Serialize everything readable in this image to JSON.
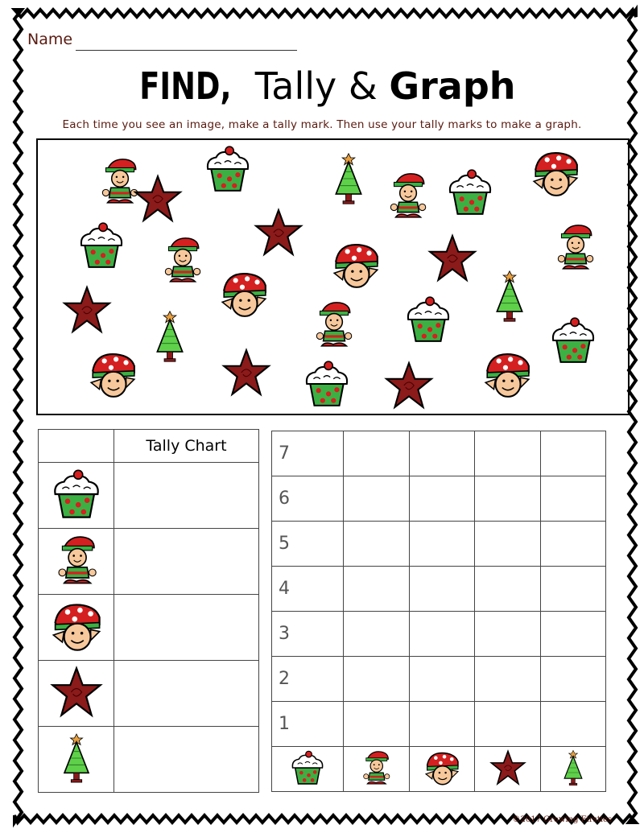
{
  "header": {
    "name_label": "Name",
    "title_part1": "FIND,",
    "title_part2": "Tally &",
    "title_part3": "Graph",
    "instructions": "Each time you see an image, make a tally mark. Then use your tally marks to make a graph."
  },
  "picture_items": [
    "cupcake",
    "elf",
    "elf-head",
    "star",
    "tree"
  ],
  "tally_chart": {
    "title": "Tally Chart",
    "rows": [
      {
        "icon": "cupcake",
        "tally": ""
      },
      {
        "icon": "elf",
        "tally": ""
      },
      {
        "icon": "elf-head",
        "tally": ""
      },
      {
        "icon": "star",
        "tally": ""
      },
      {
        "icon": "tree",
        "tally": ""
      }
    ]
  },
  "graph": {
    "y_labels": [
      "7",
      "6",
      "5",
      "4",
      "3",
      "2",
      "1"
    ],
    "categories": [
      "cupcake",
      "elf",
      "elf-head",
      "star",
      "tree"
    ]
  },
  "colors": {
    "text": "#5a1a10",
    "star": "#8b1a1a",
    "green": "#3cb043",
    "red": "#d42020"
  },
  "footer": {
    "copyright": "©2017 Growing Firsties"
  }
}
